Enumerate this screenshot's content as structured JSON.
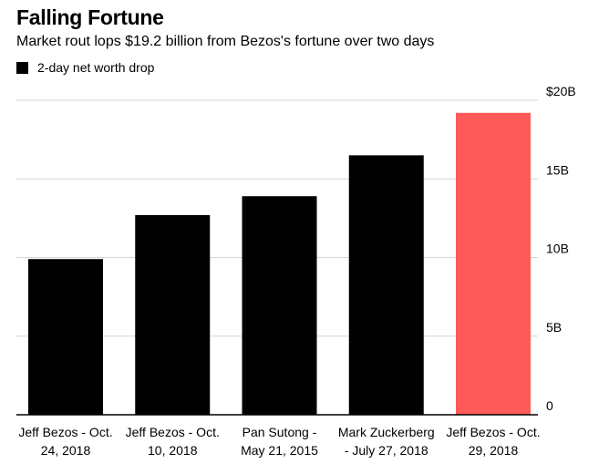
{
  "chart_data": {
    "type": "bar",
    "title": "Falling Fortune",
    "subtitle": "Market rout lops $19.2 billion from Bezos's fortune over two days",
    "legend": {
      "label": "2-day net worth drop",
      "placement": "top-left"
    },
    "categories": [
      [
        "Jeff Bezos - Oct.",
        "24, 2018"
      ],
      [
        "Jeff Bezos - Oct.",
        "10, 2018"
      ],
      [
        "Pan Sutong -",
        "May 21, 2015"
      ],
      [
        "Mark Zuckerberg",
        "- July 27, 2018"
      ],
      [
        "Jeff Bezos - Oct.",
        "29, 2018"
      ]
    ],
    "series": [
      {
        "name": "2-day net worth drop",
        "values": [
          9.9,
          12.7,
          13.9,
          16.5,
          19.2
        ]
      }
    ],
    "bar_colors": [
      "#000000",
      "#000000",
      "#000000",
      "#000000",
      "#ff5a5a"
    ],
    "y_ticks": [
      {
        "value": 0,
        "label": "0"
      },
      {
        "value": 5,
        "label": "5B"
      },
      {
        "value": 10,
        "label": "10B"
      },
      {
        "value": 15,
        "label": "15B"
      },
      {
        "value": 20,
        "label": "$20B"
      }
    ],
    "ylim": [
      0,
      20
    ],
    "y_axis_position": "right",
    "grid": true,
    "colors": {
      "primary": "#000000",
      "highlight": "#ff5a5a",
      "grid": "#d6d6d6",
      "axis": "#000000"
    }
  }
}
